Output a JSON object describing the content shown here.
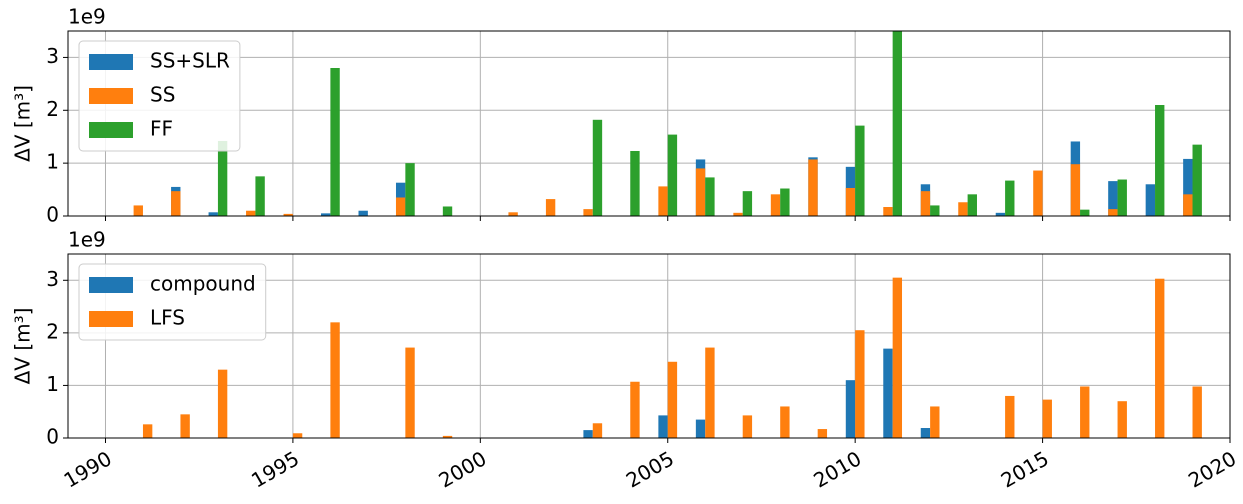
{
  "chart_data": [
    {
      "type": "bar",
      "offset_label": "1e9",
      "y_label": "ΔV [m³]",
      "x": [
        1991,
        1992,
        1993,
        1994,
        1995,
        1996,
        1997,
        1998,
        1999,
        2000,
        2001,
        2002,
        2003,
        2004,
        2005,
        2006,
        2007,
        2008,
        2009,
        2010,
        2011,
        2012,
        2013,
        2014,
        2015,
        2016,
        2017,
        2018,
        2019
      ],
      "series": [
        {
          "name": "SS+SLR",
          "color": "#1f77b4",
          "values": [
            null,
            0.55,
            0.07,
            null,
            null,
            0.05,
            0.1,
            0.63,
            null,
            null,
            null,
            null,
            null,
            null,
            null,
            1.07,
            null,
            null,
            1.11,
            0.93,
            null,
            0.6,
            null,
            0.06,
            null,
            1.41,
            0.66,
            0.6,
            1.08
          ]
        },
        {
          "name": "SS",
          "color": "#ff7f0e",
          "values": [
            0.2,
            0.47,
            null,
            0.1,
            0.04,
            null,
            null,
            0.35,
            null,
            null,
            0.07,
            0.32,
            0.13,
            null,
            0.56,
            0.9,
            0.06,
            0.41,
            1.07,
            0.53,
            0.17,
            0.47,
            0.26,
            null,
            0.86,
            0.98,
            0.13,
            null,
            0.41
          ]
        },
        {
          "name": "FF",
          "color": "#2ca02c",
          "values": [
            null,
            null,
            1.42,
            0.75,
            null,
            2.8,
            null,
            1.0,
            0.18,
            null,
            null,
            null,
            1.82,
            1.23,
            1.54,
            0.73,
            0.47,
            0.52,
            null,
            1.71,
            3.6,
            0.2,
            0.41,
            0.67,
            null,
            0.12,
            0.69,
            2.1,
            1.35
          ]
        }
      ],
      "xlim": [
        1989,
        2020
      ],
      "xticks": [
        1990,
        1995,
        2000,
        2005,
        2010,
        2015,
        2020
      ],
      "ylim": [
        0,
        3.5
      ],
      "yticks": [
        0,
        1,
        2,
        3
      ],
      "grid": true,
      "legend": "upper-left"
    },
    {
      "type": "bar",
      "offset_label": "1e9",
      "y_label": "ΔV [m³]",
      "x": [
        1991,
        1992,
        1993,
        1994,
        1995,
        1996,
        1997,
        1998,
        1999,
        2000,
        2001,
        2002,
        2003,
        2004,
        2005,
        2006,
        2007,
        2008,
        2009,
        2010,
        2011,
        2012,
        2013,
        2014,
        2015,
        2016,
        2017,
        2018,
        2019
      ],
      "series": [
        {
          "name": "compound",
          "color": "#1f77b4",
          "values": [
            null,
            null,
            null,
            null,
            null,
            null,
            null,
            null,
            null,
            null,
            null,
            null,
            0.15,
            null,
            0.43,
            0.35,
            null,
            null,
            null,
            1.1,
            1.7,
            0.19,
            null,
            null,
            null,
            null,
            null,
            null,
            null
          ]
        },
        {
          "name": "LFS",
          "color": "#ff7f0e",
          "values": [
            0.26,
            0.45,
            1.3,
            null,
            0.09,
            2.2,
            null,
            1.72,
            0.04,
            null,
            null,
            null,
            0.28,
            1.07,
            1.45,
            1.72,
            0.43,
            0.6,
            0.17,
            2.05,
            3.05,
            0.6,
            null,
            0.8,
            0.73,
            0.98,
            0.7,
            3.03,
            0.98
          ]
        }
      ],
      "xlim": [
        1989,
        2020
      ],
      "xticks": [
        1990,
        1995,
        2000,
        2005,
        2010,
        2015,
        2020
      ],
      "ylim": [
        0,
        3.5
      ],
      "yticks": [
        0,
        1,
        2,
        3
      ],
      "grid": true,
      "legend": "upper-left"
    }
  ]
}
